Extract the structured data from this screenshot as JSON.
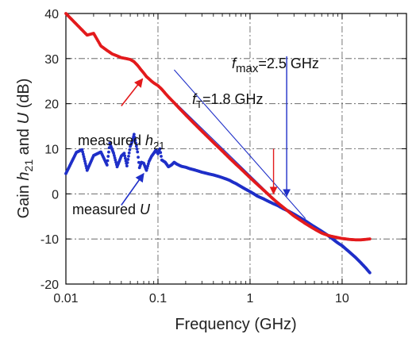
{
  "chart_data": {
    "type": "scatter",
    "title": "",
    "xlabel": "Frequency (GHz)",
    "ylabel": {
      "prefix": "Gain ",
      "h": "h",
      "h_sub": "21",
      "mid": " and ",
      "u": "U",
      "suffix": " (dB)"
    },
    "xscale": "log",
    "xlim": [
      0.01,
      50
    ],
    "ylim": [
      -20,
      40
    ],
    "x_ticks": [
      "0.01",
      "0.1",
      "1",
      "10"
    ],
    "y_ticks": [
      "40",
      "30",
      "20",
      "10",
      "0",
      "-10",
      "-20"
    ],
    "grid": true,
    "colors": {
      "h21": "#e31a1c",
      "U": "#1f2fc8",
      "line": "#1f2fc8"
    },
    "series": [
      {
        "key": "h21",
        "points": [
          [
            0.01,
            40.0
          ],
          [
            0.017,
            35.2
          ],
          [
            0.02,
            35.6
          ],
          [
            0.024,
            32.8
          ],
          [
            0.028,
            31.8
          ],
          [
            0.032,
            31.0
          ],
          [
            0.036,
            30.6
          ],
          [
            0.04,
            30.2
          ],
          [
            0.045,
            30.0
          ],
          [
            0.05,
            29.8
          ],
          [
            0.055,
            29.3
          ],
          [
            0.06,
            28.5
          ],
          [
            0.065,
            27.6
          ],
          [
            0.07,
            26.8
          ],
          [
            0.075,
            26.0
          ],
          [
            0.08,
            25.5
          ],
          [
            0.085,
            25.0
          ],
          [
            0.09,
            24.6
          ],
          [
            0.1,
            24.0
          ],
          [
            0.11,
            23.2
          ],
          [
            0.12,
            22.3
          ],
          [
            0.13,
            21.5
          ],
          [
            0.15,
            20.2
          ],
          [
            0.17,
            19.0
          ],
          [
            0.2,
            17.5
          ],
          [
            0.25,
            15.5
          ],
          [
            0.3,
            13.9
          ],
          [
            0.4,
            11.4
          ],
          [
            0.5,
            9.5
          ],
          [
            0.6,
            7.9
          ],
          [
            0.7,
            6.6
          ],
          [
            0.8,
            5.5
          ],
          [
            1.0,
            3.6
          ],
          [
            1.2,
            2.1
          ],
          [
            1.5,
            0.3
          ],
          [
            1.8,
            -1.2
          ],
          [
            2.0,
            -2.0
          ],
          [
            2.5,
            -3.6
          ],
          [
            3.0,
            -4.9
          ],
          [
            4.0,
            -6.6
          ],
          [
            5.0,
            -7.8
          ],
          [
            6.0,
            -8.7
          ],
          [
            7.0,
            -9.2
          ],
          [
            8.0,
            -9.5
          ],
          [
            10.0,
            -9.9
          ],
          [
            12.0,
            -10.1
          ],
          [
            14.0,
            -10.2
          ],
          [
            16.0,
            -10.2
          ],
          [
            18.0,
            -10.1
          ],
          [
            20.0,
            -10.0
          ]
        ]
      },
      {
        "key": "U",
        "points": [
          [
            0.01,
            4.5
          ],
          [
            0.013,
            9.2
          ],
          [
            0.015,
            9.8
          ],
          [
            0.017,
            5.2
          ],
          [
            0.02,
            8.5
          ],
          [
            0.024,
            9.3
          ],
          [
            0.028,
            6.4
          ],
          [
            0.03,
            11.2
          ],
          [
            0.033,
            9.0
          ],
          [
            0.036,
            6.0
          ],
          [
            0.04,
            8.4
          ],
          [
            0.043,
            9.0
          ],
          [
            0.046,
            6.2
          ],
          [
            0.05,
            10.5
          ],
          [
            0.053,
            11.8
          ],
          [
            0.055,
            13.2
          ],
          [
            0.06,
            9.3
          ],
          [
            0.063,
            5.8
          ],
          [
            0.066,
            7.0
          ],
          [
            0.07,
            6.8
          ],
          [
            0.075,
            5.2
          ],
          [
            0.08,
            7.2
          ],
          [
            0.085,
            8.3
          ],
          [
            0.09,
            9.0
          ],
          [
            0.095,
            9.7
          ],
          [
            0.1,
            8.9
          ],
          [
            0.105,
            10.0
          ],
          [
            0.11,
            7.5
          ],
          [
            0.12,
            7.0
          ],
          [
            0.13,
            6.0
          ],
          [
            0.14,
            6.4
          ],
          [
            0.15,
            7.0
          ],
          [
            0.16,
            6.6
          ],
          [
            0.18,
            6.1
          ],
          [
            0.2,
            5.9
          ],
          [
            0.22,
            5.6
          ],
          [
            0.25,
            5.3
          ],
          [
            0.28,
            5.0
          ],
          [
            0.3,
            4.8
          ],
          [
            0.33,
            4.6
          ],
          [
            0.36,
            4.4
          ],
          [
            0.4,
            4.2
          ],
          [
            0.45,
            3.9
          ],
          [
            0.5,
            3.6
          ],
          [
            0.55,
            3.3
          ],
          [
            0.6,
            3.0
          ],
          [
            0.65,
            2.6
          ],
          [
            0.7,
            2.3
          ],
          [
            0.8,
            1.6
          ],
          [
            0.9,
            1.0
          ],
          [
            1.0,
            0.5
          ],
          [
            1.1,
            0.0
          ],
          [
            1.2,
            -0.5
          ],
          [
            1.4,
            -1.1
          ],
          [
            1.6,
            -1.7
          ],
          [
            1.8,
            -2.2
          ],
          [
            2.0,
            -2.6
          ],
          [
            2.3,
            -3.3
          ],
          [
            2.6,
            -3.8
          ],
          [
            3.0,
            -4.5
          ],
          [
            3.5,
            -5.3
          ],
          [
            4.0,
            -6.0
          ],
          [
            4.5,
            -6.7
          ],
          [
            5.0,
            -7.3
          ],
          [
            6.0,
            -8.3
          ],
          [
            7.0,
            -9.2
          ],
          [
            8.0,
            -10.1
          ],
          [
            9.0,
            -10.9
          ],
          [
            10.0,
            -11.5
          ],
          [
            12.0,
            -12.9
          ],
          [
            14.0,
            -14.1
          ],
          [
            16.0,
            -15.3
          ],
          [
            18.0,
            -16.4
          ],
          [
            20.0,
            -17.5
          ]
        ]
      }
    ],
    "fit_lines": [
      {
        "key": "fT",
        "from": [
          0.15,
          20.5
        ],
        "to": [
          2.5,
          -3.8
        ]
      },
      {
        "key": "fmax",
        "from": [
          0.15,
          27.5
        ],
        "to": [
          4.0,
          -5.5
        ]
      }
    ],
    "annotations": {
      "fmax": {
        "f": "f",
        "sub": "max",
        "value": "=2.5 GHz"
      },
      "fT": {
        "f": "f",
        "sub": "T",
        "value": "=1.8 GHz"
      },
      "h21": {
        "prefix": "measured ",
        "h": "h",
        "sub": "21"
      },
      "U": {
        "prefix": "measured ",
        "u": "U"
      }
    },
    "marker_arrows": [
      {
        "key": "fT",
        "x": 1.8,
        "y_from": 10,
        "y_to": 0,
        "color_key": "h21"
      },
      {
        "key": "fmax",
        "x": 2.5,
        "y_from": 30.5,
        "y_to": -0.5,
        "color_key": "U"
      }
    ],
    "label_arrows": [
      {
        "key": "h21",
        "from": [
          0.04,
          19.5
        ],
        "to": [
          0.068,
          25.5
        ],
        "color_key": "h21"
      },
      {
        "key": "U",
        "from": [
          0.04,
          -2.5
        ],
        "to": [
          0.07,
          4.5
        ],
        "color_key": "U"
      }
    ]
  }
}
